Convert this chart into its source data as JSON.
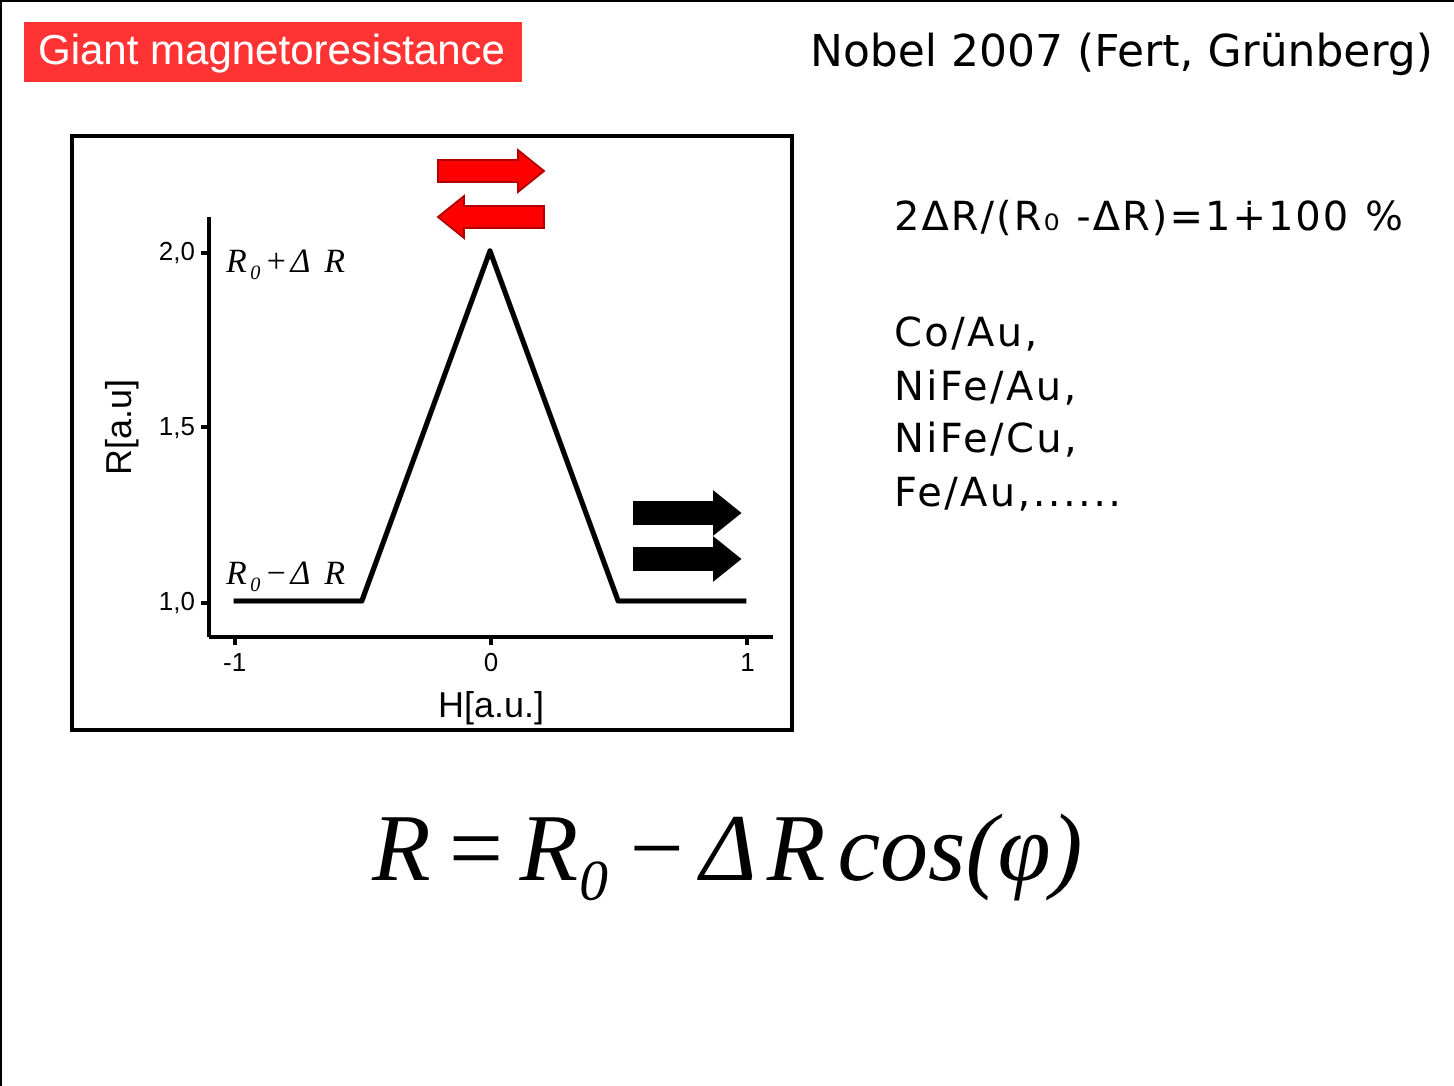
{
  "chart_data": {
    "type": "line",
    "title": "Giant magnetoresistance",
    "subtitle": "Nobel 2007 (Fert, Grünberg)",
    "xlabel": "H[a.u.]",
    "ylabel": "R[a.u]",
    "x": [
      -1,
      -0.5,
      0,
      0.5,
      1
    ],
    "series": [
      {
        "color": "#000000",
        "values": [
          1,
          1,
          2,
          1,
          1
        ]
      }
    ],
    "xlim": [
      -1.1,
      1.1
    ],
    "ylim": [
      0.9,
      2.1
    ],
    "xticks": [
      -1,
      0,
      1
    ],
    "yticks": [
      {
        "value": 1,
        "label": "1,0"
      },
      {
        "value": 1.5,
        "label": "1,5"
      },
      {
        "value": 2,
        "label": "2,0"
      }
    ],
    "annotations": [
      "R₀+Δ R",
      "R₀−Δ R",
      "2ΔR/(R₀ -ΔR)=1∔100 %",
      "Co/Au,",
      "NiFe/Au,",
      "NiFe/Cu,",
      "Fe/Au,......",
      "R = R₀ − Δ R cos(φ)"
    ],
    "grid": false
  }
}
